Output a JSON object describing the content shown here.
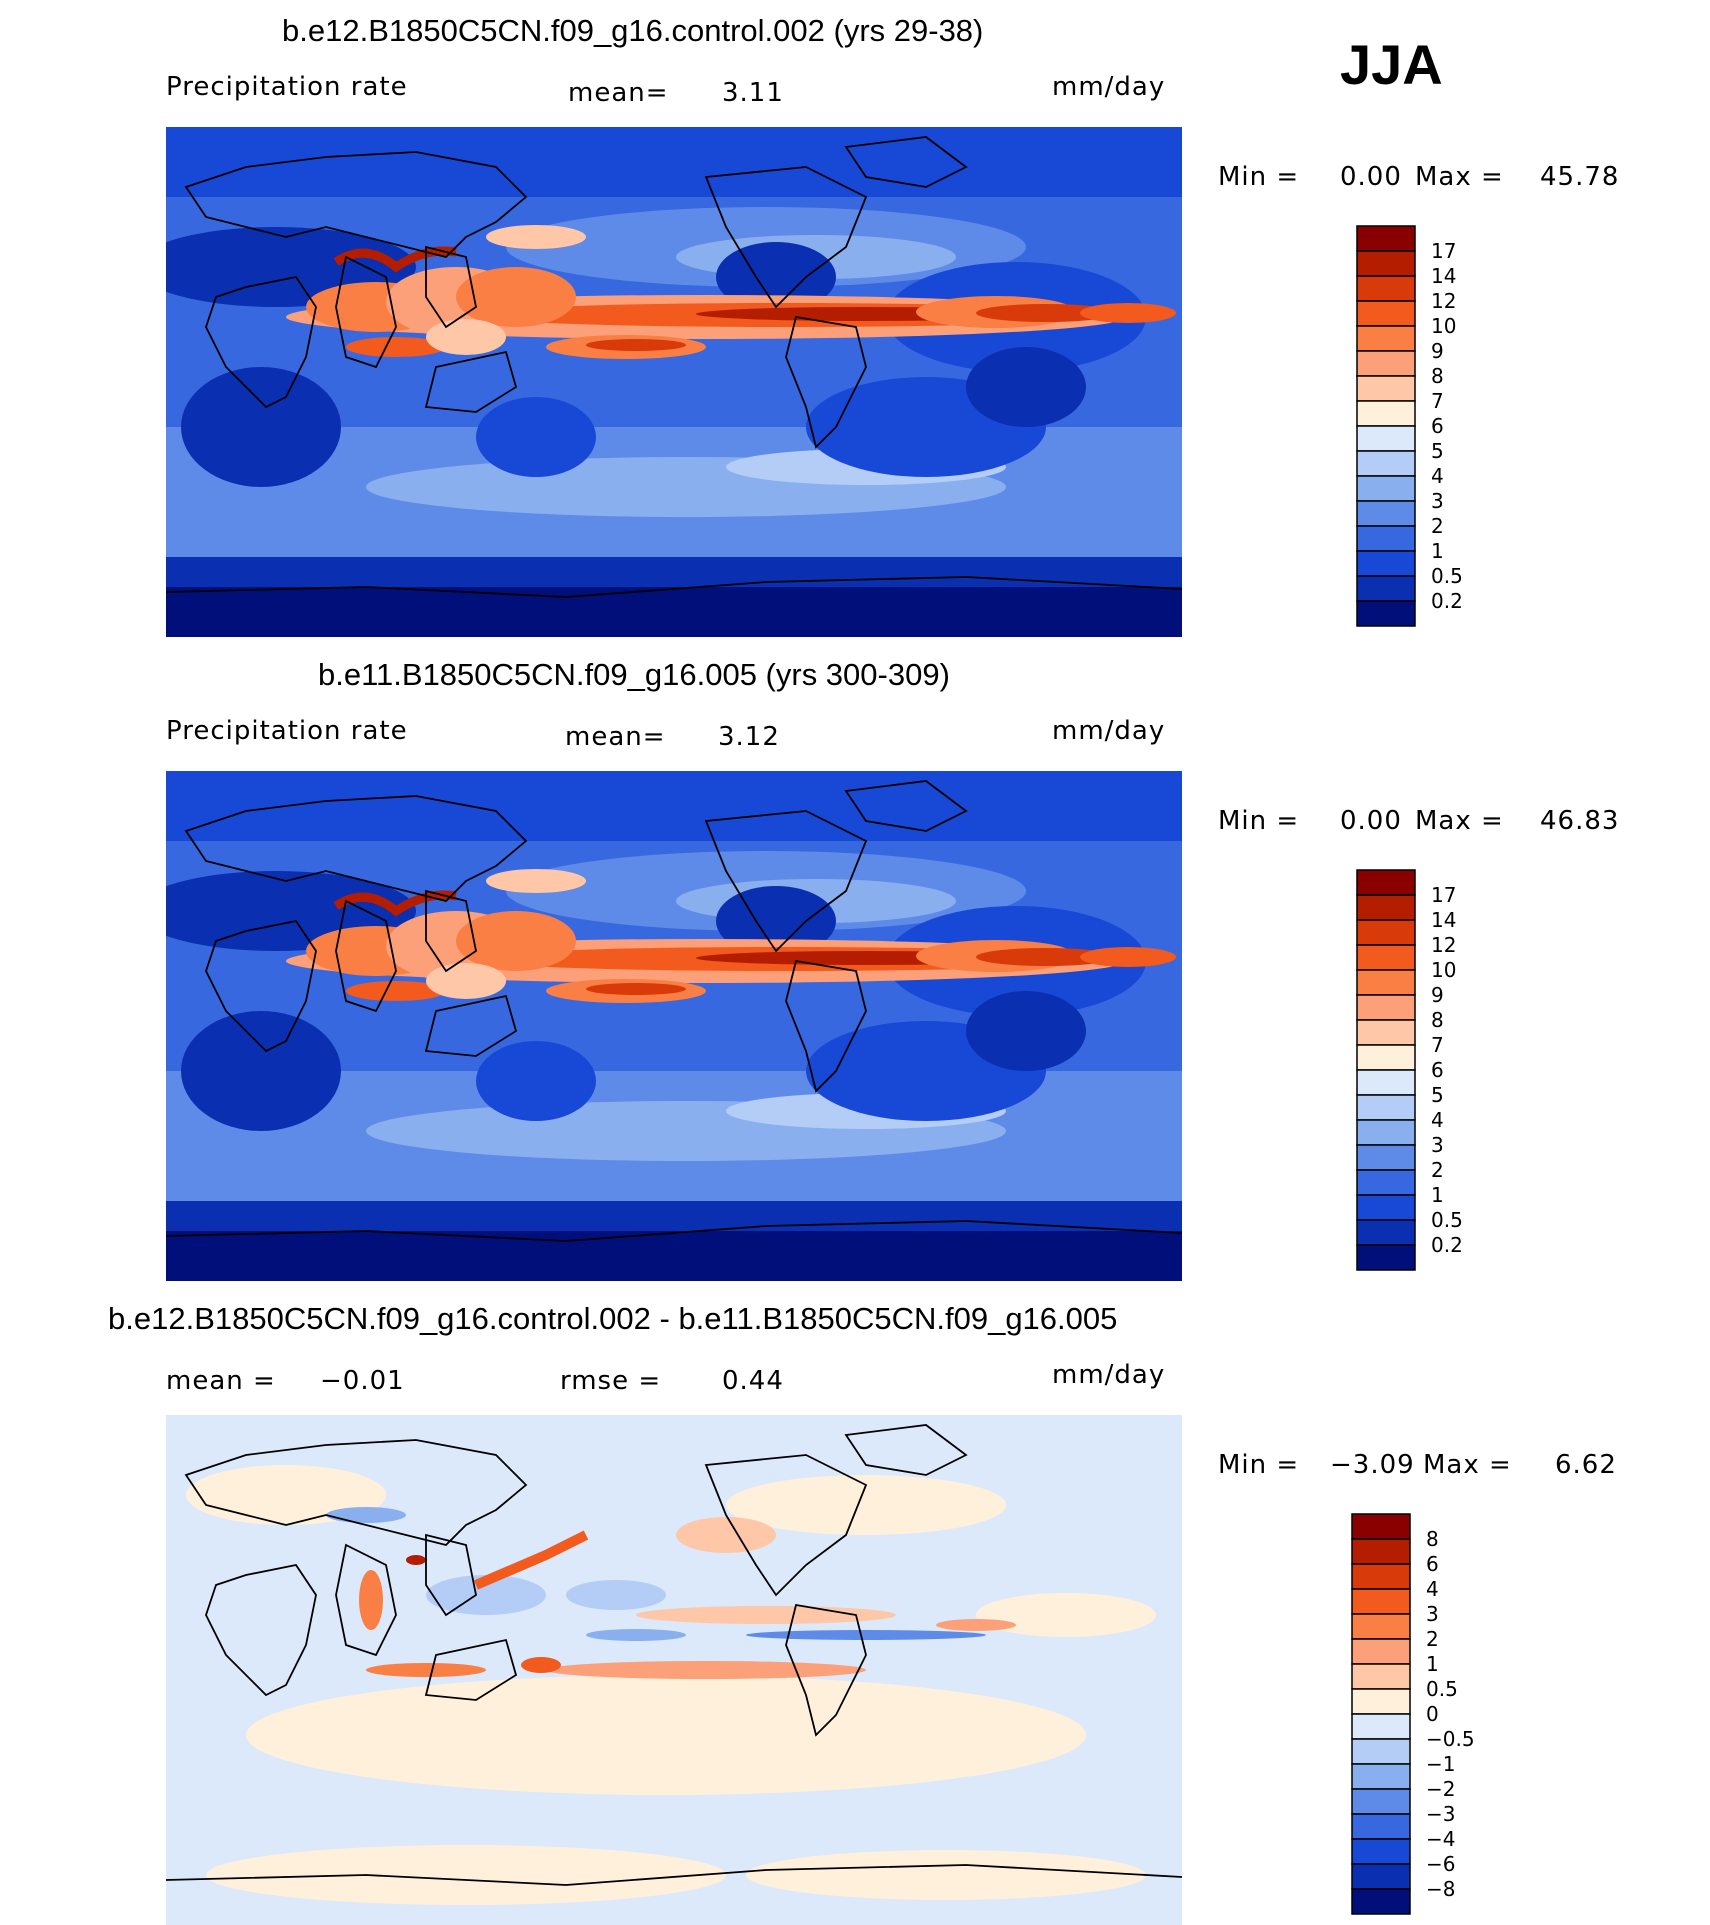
{
  "season": "JJA",
  "panels": [
    {
      "title": "b.e12.B1850C5CN.f09_g16.control.002 (yrs 29-38)",
      "left_label": "Precipitation  rate",
      "center_label": "mean=",
      "center_value": "3.11",
      "units": "mm/day",
      "min_label": "Min  =",
      "min_value": "0.00",
      "max_label": "Max  =",
      "max_value": "45.78",
      "levels": [
        "17",
        "14",
        "12",
        "10",
        "9",
        "8",
        "7",
        "6",
        "5",
        "4",
        "3",
        "2",
        "1",
        "0.5",
        "0.2"
      ],
      "colors": [
        "#8a0000",
        "#b51d00",
        "#d93a0a",
        "#f25a1e",
        "#fa7f45",
        "#fca07a",
        "#fdc7a8",
        "#fff0dc",
        "#dce9fa",
        "#b4cdf7",
        "#8aafef",
        "#5f8be8",
        "#3868e0",
        "#1848d6",
        "#0a2fb0",
        "#000f7a"
      ]
    },
    {
      "title": "b.e11.B1850C5CN.f09_g16.005 (yrs 300-309)",
      "left_label": "Precipitation  rate",
      "center_label": "mean=",
      "center_value": "3.12",
      "units": "mm/day",
      "min_label": "Min  =",
      "min_value": "0.00",
      "max_label": "Max  =",
      "max_value": "46.83",
      "levels": [
        "17",
        "14",
        "12",
        "10",
        "9",
        "8",
        "7",
        "6",
        "5",
        "4",
        "3",
        "2",
        "1",
        "0.5",
        "0.2"
      ],
      "colors": [
        "#8a0000",
        "#b51d00",
        "#d93a0a",
        "#f25a1e",
        "#fa7f45",
        "#fca07a",
        "#fdc7a8",
        "#fff0dc",
        "#dce9fa",
        "#b4cdf7",
        "#8aafef",
        "#5f8be8",
        "#3868e0",
        "#1848d6",
        "#0a2fb0",
        "#000f7a"
      ]
    },
    {
      "title": "b.e12.B1850C5CN.f09_g16.control.002 - b.e11.B1850C5CN.f09_g16.005",
      "left_label": "mean  =",
      "left_value": "−0.01",
      "center_label": "rmse  =",
      "center_value": "0.44",
      "units": "mm/day",
      "min_label": "Min  =",
      "min_value": "−3.09",
      "max_label": "Max  =",
      "max_value": "6.62",
      "levels": [
        "8",
        "6",
        "4",
        "3",
        "2",
        "1",
        "0.5",
        "0",
        "−0.5",
        "−1",
        "−2",
        "−3",
        "−4",
        "−6",
        "−8"
      ],
      "colors": [
        "#8a0000",
        "#b51d00",
        "#d93a0a",
        "#f25a1e",
        "#fa7f45",
        "#fca07a",
        "#fdc7a8",
        "#fff0dc",
        "#dce9fa",
        "#b4cdf7",
        "#8aafef",
        "#5f8be8",
        "#3868e0",
        "#1848d6",
        "#0a2fb0",
        "#000f7a"
      ]
    }
  ],
  "chart_data": [
    {
      "type": "heatmap",
      "title": "b.e12.B1850C5CN.f09_g16.control.002 (yrs 29-38)",
      "field": "Precipitation  rate",
      "units": "mm/day",
      "mean": 3.11,
      "min": 0.0,
      "max": 45.78,
      "contour_levels": [
        0.2,
        0.5,
        1,
        2,
        3,
        4,
        5,
        6,
        7,
        8,
        9,
        10,
        12,
        14,
        17
      ],
      "grid": false
    },
    {
      "type": "heatmap",
      "title": "b.e11.B1850C5CN.f09_g16.005 (yrs 300-309)",
      "field": "Precipitation  rate",
      "units": "mm/day",
      "mean": 3.12,
      "min": 0.0,
      "max": 46.83,
      "contour_levels": [
        0.2,
        0.5,
        1,
        2,
        3,
        4,
        5,
        6,
        7,
        8,
        9,
        10,
        12,
        14,
        17
      ],
      "grid": false
    },
    {
      "type": "heatmap",
      "title": "b.e12.B1850C5CN.f09_g16.control.002 - b.e11.B1850C5CN.f09_g16.005",
      "units": "mm/day",
      "mean": -0.01,
      "rmse": 0.44,
      "min": -3.09,
      "max": 6.62,
      "contour_levels": [
        -8,
        -6,
        -4,
        -3,
        -2,
        -1,
        -0.5,
        0,
        0.5,
        1,
        2,
        3,
        4,
        6,
        8
      ],
      "grid": false
    }
  ]
}
